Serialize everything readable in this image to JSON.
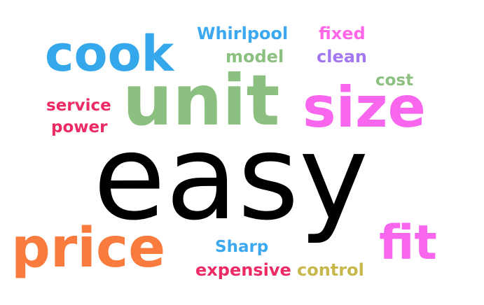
{
  "words": [
    {
      "key": "whirlpool",
      "text": "Whirlpool",
      "color": "#3ba8f0"
    },
    {
      "key": "fixed",
      "text": "fixed",
      "color": "#ff66e6"
    },
    {
      "key": "cook",
      "text": "cook",
      "color": "#34a8ea"
    },
    {
      "key": "model",
      "text": "model",
      "color": "#8cc080"
    },
    {
      "key": "clean",
      "text": "clean",
      "color": "#a377f0"
    },
    {
      "key": "cost",
      "text": "cost",
      "color": "#8cc080"
    },
    {
      "key": "unit",
      "text": "unit",
      "color": "#8cc080"
    },
    {
      "key": "size",
      "text": "size",
      "color": "#f866ee"
    },
    {
      "key": "service",
      "text": "service",
      "color": "#ec2a63"
    },
    {
      "key": "power",
      "text": "power",
      "color": "#ec2a63"
    },
    {
      "key": "easy",
      "text": "easy",
      "color": "#000000"
    },
    {
      "key": "price",
      "text": "price",
      "color": "#f97c3e"
    },
    {
      "key": "fit",
      "text": "fit",
      "color": "#f866ee"
    },
    {
      "key": "sharp",
      "text": "Sharp",
      "color": "#3ba8f0"
    },
    {
      "key": "expensive",
      "text": "expensive",
      "color": "#ec2a63"
    },
    {
      "key": "control",
      "text": "control",
      "color": "#c6b84c"
    }
  ]
}
